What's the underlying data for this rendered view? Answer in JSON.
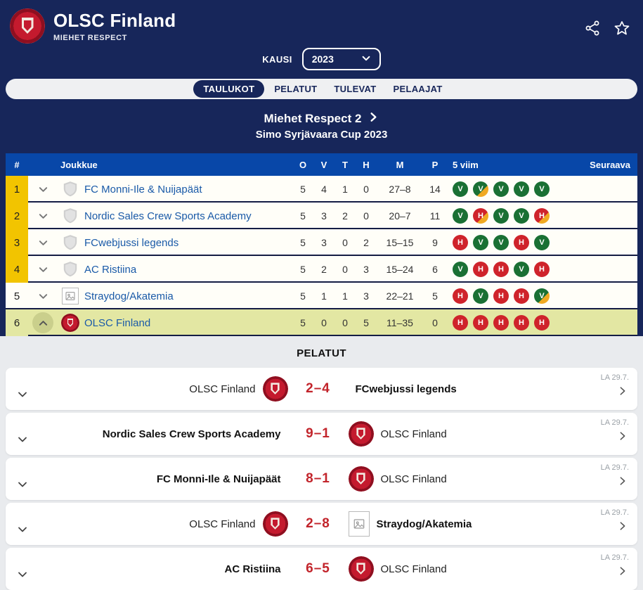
{
  "header": {
    "title": "OLSC Finland",
    "subtitle": "MIEHET RESPECT",
    "season_label": "KAUSI",
    "season_value": "2023"
  },
  "tabs": [
    {
      "label": "TAULUKOT",
      "active": true
    },
    {
      "label": "PELATUT",
      "active": false
    },
    {
      "label": "TULEVAT",
      "active": false
    },
    {
      "label": "PELAAJAT",
      "active": false
    }
  ],
  "section": {
    "title": "Miehet Respect 2",
    "subtitle": "Simo Syrjävaara Cup 2023"
  },
  "table": {
    "columns": [
      "#",
      "Joukkue",
      "O",
      "V",
      "T",
      "H",
      "M",
      "P",
      "5 viim",
      "Seuraava"
    ],
    "rows": [
      {
        "pos": "1",
        "pos_style": "gold",
        "badge": "shield",
        "team": "FC Monni-Ile & Nuijapäät",
        "o": "5",
        "v": "4",
        "t": "1",
        "h": "0",
        "m": "27–8",
        "p": "14",
        "form": [
          "V",
          "V*",
          "V",
          "V",
          "V"
        ],
        "expanded": false,
        "highlight": false
      },
      {
        "pos": "2",
        "pos_style": "gold",
        "badge": "shield",
        "team": "Nordic Sales Crew Sports Academy",
        "o": "5",
        "v": "3",
        "t": "2",
        "h": "0",
        "m": "20–7",
        "p": "11",
        "form": [
          "V",
          "H*",
          "V",
          "V",
          "H*"
        ],
        "expanded": false,
        "highlight": false
      },
      {
        "pos": "3",
        "pos_style": "gold",
        "badge": "shield",
        "team": "FCwebjussi legends",
        "o": "5",
        "v": "3",
        "t": "0",
        "h": "2",
        "m": "15–15",
        "p": "9",
        "form": [
          "H",
          "V",
          "V",
          "H",
          "V"
        ],
        "expanded": false,
        "highlight": false
      },
      {
        "pos": "4",
        "pos_style": "gold",
        "badge": "shield",
        "team": "AC Ristiina",
        "o": "5",
        "v": "2",
        "t": "0",
        "h": "3",
        "m": "15–24",
        "p": "6",
        "form": [
          "V",
          "H",
          "H",
          "V",
          "H"
        ],
        "expanded": false,
        "highlight": false
      },
      {
        "pos": "5",
        "pos_style": "plain",
        "badge": "imgph",
        "team": "Straydog/Akatemia",
        "o": "5",
        "v": "1",
        "t": "1",
        "h": "3",
        "m": "22–21",
        "p": "5",
        "form": [
          "H",
          "V",
          "H",
          "H",
          "V*"
        ],
        "expanded": false,
        "highlight": false
      },
      {
        "pos": "6",
        "pos_style": "hl",
        "badge": "olsc",
        "team": "OLSC Finland",
        "o": "5",
        "v": "0",
        "t": "0",
        "h": "5",
        "m": "11–35",
        "p": "0",
        "form": [
          "H",
          "H",
          "H",
          "H",
          "H"
        ],
        "expanded": true,
        "highlight": true
      }
    ]
  },
  "matches": {
    "heading": "PELATUT",
    "items": [
      {
        "home": {
          "name": "OLSC Finland",
          "logo": "olsc",
          "bold": false
        },
        "score": "2–4",
        "away": {
          "name": "FCwebjussi legends",
          "logo": "none",
          "bold": true
        },
        "date": "LA 29.7."
      },
      {
        "home": {
          "name": "Nordic Sales Crew Sports Academy",
          "logo": "none",
          "bold": true
        },
        "score": "9–1",
        "away": {
          "name": "OLSC Finland",
          "logo": "olsc",
          "bold": false
        },
        "date": "LA 29.7."
      },
      {
        "home": {
          "name": "FC Monni-Ile & Nuijapäät",
          "logo": "none",
          "bold": true
        },
        "score": "8–1",
        "away": {
          "name": "OLSC Finland",
          "logo": "olsc",
          "bold": false
        },
        "date": "LA 29.7."
      },
      {
        "home": {
          "name": "OLSC Finland",
          "logo": "olsc",
          "bold": false
        },
        "score": "2–8",
        "away": {
          "name": "Straydog/Akatemia",
          "logo": "imgph",
          "bold": true
        },
        "date": "LA 29.7."
      },
      {
        "home": {
          "name": "AC Ristiina",
          "logo": "none",
          "bold": true
        },
        "score": "6–5",
        "away": {
          "name": "OLSC Finland",
          "logo": "olsc",
          "bold": false
        },
        "date": "LA 29.7."
      }
    ]
  },
  "colors": {
    "header_navy": "#17265a",
    "table_header_blue": "#0847a8",
    "position_gold": "#f2c400",
    "highlight_row": "#e3e7a3",
    "form_win_green": "#1a7034",
    "form_loss_red": "#cf232b",
    "form_shootout_gold": "#f0a922",
    "score_red": "#c2242b",
    "team_link_blue": "#1a5aa8",
    "club_red": "#c41a2e"
  }
}
